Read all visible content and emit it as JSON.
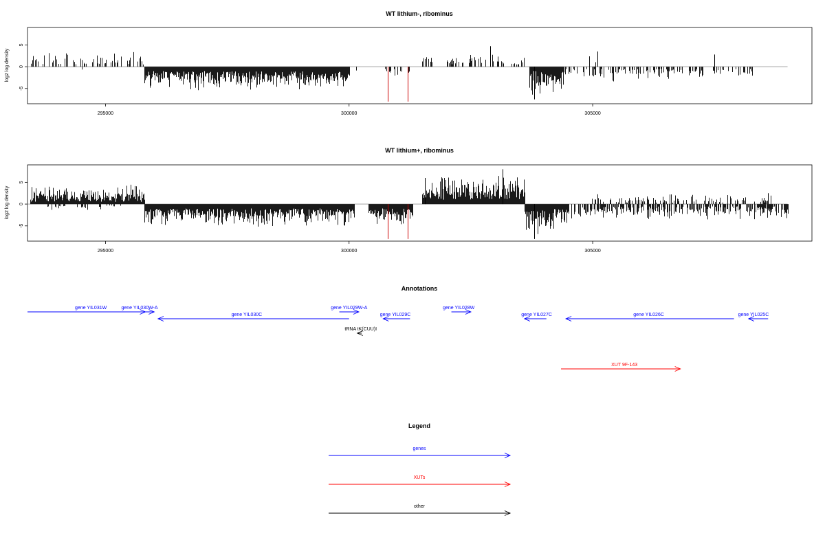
{
  "colors": {
    "background": "#ffffff",
    "axis": "#000000",
    "series_default": "#000000",
    "series_highlight": "#cc0000",
    "genes": "#0000ff",
    "xuts": "#ff0000",
    "other": "#000000",
    "zero_line": "#999999"
  },
  "chart_data": [
    {
      "type": "bar",
      "title": "WT lithium-, ribominus",
      "ylabel": "log2 log density",
      "xlabel": "",
      "xlim": [
        293400,
        309500
      ],
      "ylim": [
        -8.5,
        9
      ],
      "xticks": [
        {
          "value": 295000,
          "label": "295000"
        },
        {
          "value": 300000,
          "label": "300000"
        },
        {
          "value": 305000,
          "label": "305000"
        }
      ],
      "yticks": [
        {
          "value": 5,
          "label": "5"
        },
        {
          "value": 0,
          "label": "0"
        },
        {
          "value": -5,
          "label": "-5"
        }
      ],
      "grid": false,
      "zero_line": {
        "from": 293400,
        "to": 309000
      },
      "segments": [
        {
          "from": 293450,
          "to": 295800,
          "min": 0.5,
          "max": 4.0,
          "sign": 1,
          "density": 0.35,
          "seed": 11
        },
        {
          "from": 294500,
          "to": 294700,
          "min": 0.5,
          "max": 1.5,
          "sign": -1,
          "density": 0.1,
          "seed": 12
        },
        {
          "from": 295800,
          "to": 300000,
          "min": 1.0,
          "max": 5.5,
          "sign": -1,
          "density": 1.0,
          "seed": 13
        },
        {
          "from": 300100,
          "to": 300200,
          "min": 0.3,
          "max": 1.0,
          "sign": -1,
          "density": 0.2,
          "seed": 14
        },
        {
          "from": 300700,
          "to": 301300,
          "min": 0.5,
          "max": 2.5,
          "sign": -1,
          "density": 0.15,
          "seed": 15
        },
        {
          "from": 301500,
          "to": 301700,
          "min": 1.0,
          "max": 2.5,
          "sign": 1,
          "density": 0.5,
          "seed": 16
        },
        {
          "from": 302000,
          "to": 302600,
          "min": 0.5,
          "max": 3.0,
          "sign": 1,
          "density": 0.35,
          "seed": 17
        },
        {
          "from": 302600,
          "to": 303700,
          "min": 0.5,
          "max": 3.0,
          "sign": 1,
          "density": 0.35,
          "seed": 18
        },
        {
          "from": 303700,
          "to": 304400,
          "min": 1.0,
          "max": 7.5,
          "sign": -1,
          "density": 1.0,
          "seed": 19
        },
        {
          "from": 304400,
          "to": 306300,
          "min": 0.5,
          "max": 3.5,
          "sign": -1,
          "density": 0.4,
          "seed": 20
        },
        {
          "from": 304700,
          "to": 305300,
          "min": 0.5,
          "max": 3.0,
          "sign": 1,
          "density": 0.15,
          "seed": 21
        },
        {
          "from": 306300,
          "to": 308300,
          "min": 0.5,
          "max": 3.0,
          "sign": -1,
          "density": 0.35,
          "seed": 22
        }
      ],
      "fixed_values": [
        {
          "x": 302900,
          "value": 4.7
        },
        {
          "x": 305100,
          "value": 3.5
        },
        {
          "x": 307500,
          "value": 2.8
        },
        {
          "x": 303800,
          "value": -7.5
        }
      ],
      "highlighted_values": [
        {
          "x": 300800,
          "value": -8.0
        },
        {
          "x": 301210,
          "value": -8.0
        }
      ]
    },
    {
      "type": "bar",
      "title": "WT lithium+, ribominus",
      "ylabel": "log2 log density",
      "xlabel": "",
      "xlim": [
        293400,
        309500
      ],
      "ylim": [
        -8.5,
        9
      ],
      "xticks": [
        {
          "value": 295000,
          "label": "295000"
        },
        {
          "value": 300000,
          "label": "300000"
        },
        {
          "value": 305000,
          "label": "305000"
        }
      ],
      "yticks": [
        {
          "value": 5,
          "label": "5"
        },
        {
          "value": 0,
          "label": "0"
        },
        {
          "value": -5,
          "label": "-5"
        }
      ],
      "grid": false,
      "zero_line": {
        "from": 293400,
        "to": 309000
      },
      "segments": [
        {
          "from": 293450,
          "to": 295800,
          "min": 0.5,
          "max": 4.5,
          "sign": 1,
          "density": 1.0,
          "seed": 31
        },
        {
          "from": 293800,
          "to": 295500,
          "min": 0.3,
          "max": 1.5,
          "sign": -1,
          "density": 0.15,
          "seed": 32
        },
        {
          "from": 295800,
          "to": 300100,
          "min": 1.0,
          "max": 5.5,
          "sign": -1,
          "density": 1.0,
          "seed": 33
        },
        {
          "from": 300400,
          "to": 301300,
          "min": 1.0,
          "max": 5.5,
          "sign": -1,
          "density": 1.0,
          "seed": 34
        },
        {
          "from": 301500,
          "to": 303600,
          "min": 1.0,
          "max": 7.0,
          "sign": 1,
          "density": 1.0,
          "seed": 35
        },
        {
          "from": 303600,
          "to": 304500,
          "min": 1.0,
          "max": 7.0,
          "sign": -1,
          "density": 1.0,
          "seed": 36
        },
        {
          "from": 304500,
          "to": 309000,
          "min": 0.5,
          "max": 4.0,
          "sign": -1,
          "density": 0.6,
          "seed": 37
        },
        {
          "from": 304800,
          "to": 308800,
          "min": 0.3,
          "max": 2.5,
          "sign": 1,
          "density": 0.25,
          "seed": 38
        }
      ],
      "fixed_values": [
        {
          "x": 303150,
          "value": 8.0
        },
        {
          "x": 303800,
          "value": -8.0
        },
        {
          "x": 301550,
          "value": 6.0
        },
        {
          "x": 308600,
          "value": 2.5
        }
      ],
      "highlighted_values": [
        {
          "x": 300800,
          "value": -8.0
        },
        {
          "x": 301210,
          "value": -8.0
        }
      ]
    }
  ],
  "annotations": {
    "title": "Annotations",
    "xlim": [
      293400,
      309500
    ],
    "items": [
      {
        "label": "gene YIL031W",
        "kind": "genes",
        "start": 293400,
        "end": 296000,
        "dir": "right",
        "row": 0,
        "label_at": 294700
      },
      {
        "label": "gene YIL030W-A",
        "kind": "genes",
        "start": 295500,
        "end": 295820,
        "dir": "right",
        "row": 0,
        "label_at": 295700
      },
      {
        "label": "gene YIL030C",
        "kind": "genes",
        "start": 296080,
        "end": 300000,
        "dir": "left",
        "row": 1,
        "label_at": 297900
      },
      {
        "label": "gene YIL029W-A",
        "kind": "genes",
        "start": 299800,
        "end": 300200,
        "dir": "right",
        "row": 0,
        "label_at": 300000
      },
      {
        "label": "gene YIL029C",
        "kind": "genes",
        "start": 300700,
        "end": 301250,
        "dir": "left",
        "row": 1,
        "label_at": 300950
      },
      {
        "label": "gene YIL028W",
        "kind": "genes",
        "start": 302100,
        "end": 302500,
        "dir": "right",
        "row": 0,
        "label_at": 302250
      },
      {
        "label": "gene YIL027C",
        "kind": "genes",
        "start": 303600,
        "end": 304050,
        "dir": "left",
        "row": 1,
        "label_at": 303850
      },
      {
        "label": "gene YIL026C",
        "kind": "genes",
        "start": 304450,
        "end": 307900,
        "dir": "left",
        "row": 1,
        "label_at": 306150
      },
      {
        "label": "gene YIL025C",
        "kind": "genes",
        "start": 308200,
        "end": 308600,
        "dir": "left",
        "row": 1,
        "label_at": 308300
      },
      {
        "label": "tRNA tK(CUU)I",
        "kind": "other",
        "start": 300170,
        "end": 300260,
        "dir": "left",
        "row": 2,
        "label_at": 300240
      },
      {
        "label": "XUT 9F-143",
        "kind": "xuts",
        "start": 304350,
        "end": 306800,
        "dir": "right",
        "row": 3,
        "label_at": 305650
      }
    ]
  },
  "legend": {
    "title": "Legend",
    "items": [
      {
        "label": "genes",
        "kind": "genes"
      },
      {
        "label": "XUTs",
        "kind": "xuts"
      },
      {
        "label": "other",
        "kind": "other"
      }
    ]
  }
}
